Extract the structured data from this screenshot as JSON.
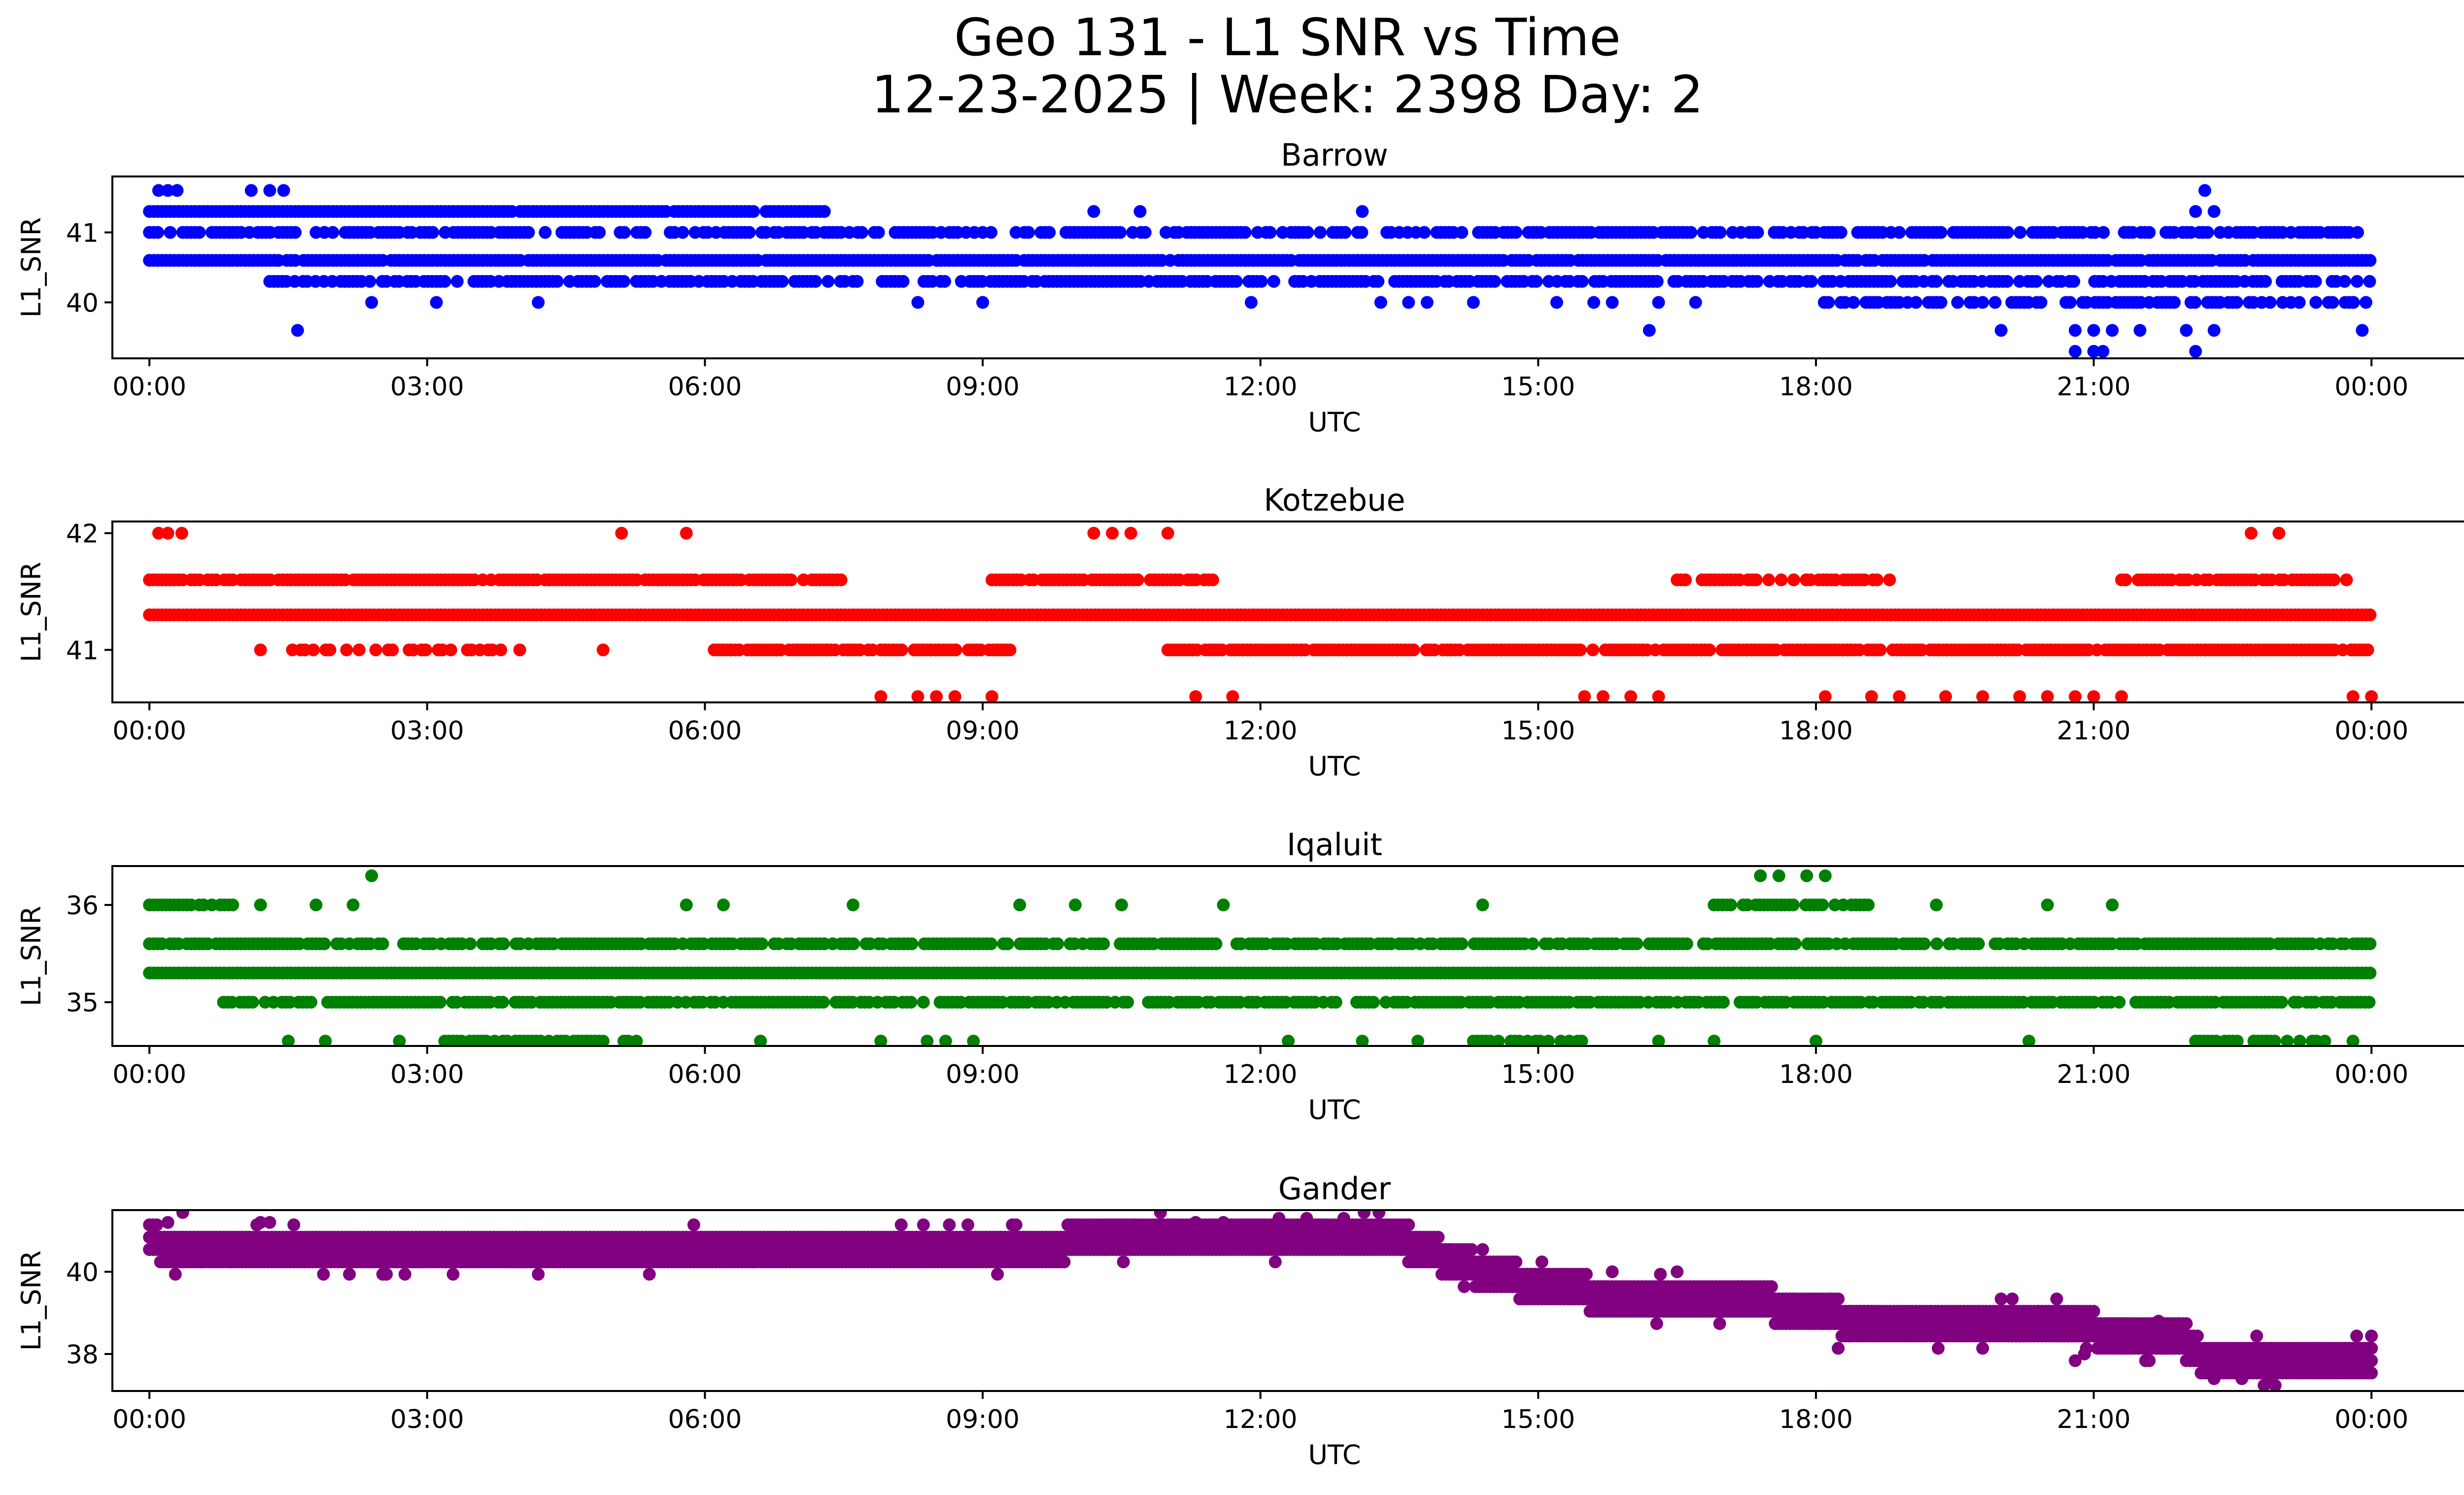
{
  "title": "Geo 131 - L1 SNR vs Time",
  "subtitle": "12-23-2025 | Week: 2398 Day: 2",
  "chart_data": [
    {
      "type": "scatter",
      "title": "Barrow",
      "xlabel": "UTC",
      "ylabel": "L1_SNR",
      "color": "#0000ff",
      "xlim": [
        -0.4,
        26.0
      ],
      "ylim": [
        39.2,
        41.8
      ],
      "xticks": [
        "00:00",
        "03:00",
        "06:00",
        "09:00",
        "12:00",
        "15:00",
        "18:00",
        "21:00",
        "00:00"
      ],
      "xtick_values": [
        0,
        3,
        6,
        9,
        12,
        15,
        18,
        21,
        24
      ],
      "yticks": [
        40,
        41
      ],
      "bands": [
        {
          "y": 41.3,
          "from": 0.0,
          "to": 7.3,
          "density": 0.95
        },
        {
          "y": 41.0,
          "from": 0.0,
          "to": 24.0,
          "density": 0.7
        },
        {
          "y": 40.6,
          "from": 0.0,
          "to": 24.0,
          "density": 0.95
        },
        {
          "y": 40.3,
          "from": 1.3,
          "to": 24.0,
          "density": 0.75
        },
        {
          "y": 40.0,
          "from": 18.0,
          "to": 24.0,
          "density": 0.6
        }
      ],
      "outliers": [
        {
          "x": 0.1,
          "y": 41.6
        },
        {
          "x": 0.2,
          "y": 41.6
        },
        {
          "x": 0.3,
          "y": 41.6
        },
        {
          "x": 1.1,
          "y": 41.6
        },
        {
          "x": 1.3,
          "y": 41.6
        },
        {
          "x": 1.45,
          "y": 41.6
        },
        {
          "x": 22.2,
          "y": 41.6
        },
        {
          "x": 1.6,
          "y": 39.6
        },
        {
          "x": 2.4,
          "y": 40.0
        },
        {
          "x": 3.1,
          "y": 40.0
        },
        {
          "x": 4.2,
          "y": 40.0
        },
        {
          "x": 8.3,
          "y": 40.0
        },
        {
          "x": 9.0,
          "y": 40.0
        },
        {
          "x": 11.9,
          "y": 40.0
        },
        {
          "x": 13.3,
          "y": 40.0
        },
        {
          "x": 13.6,
          "y": 40.0
        },
        {
          "x": 13.8,
          "y": 40.0
        },
        {
          "x": 14.3,
          "y": 40.0
        },
        {
          "x": 15.2,
          "y": 40.0
        },
        {
          "x": 15.6,
          "y": 40.0
        },
        {
          "x": 15.8,
          "y": 40.0
        },
        {
          "x": 16.3,
          "y": 40.0
        },
        {
          "x": 16.7,
          "y": 40.0
        },
        {
          "x": 16.2,
          "y": 39.6
        },
        {
          "x": 20.0,
          "y": 39.6
        },
        {
          "x": 20.8,
          "y": 39.6
        },
        {
          "x": 21.0,
          "y": 39.6
        },
        {
          "x": 21.2,
          "y": 39.6
        },
        {
          "x": 21.5,
          "y": 39.6
        },
        {
          "x": 22.0,
          "y": 39.6
        },
        {
          "x": 22.3,
          "y": 39.6
        },
        {
          "x": 23.9,
          "y": 39.6
        },
        {
          "x": 20.8,
          "y": 39.3
        },
        {
          "x": 21.0,
          "y": 39.3
        },
        {
          "x": 21.1,
          "y": 39.3
        },
        {
          "x": 22.1,
          "y": 39.3
        },
        {
          "x": 10.2,
          "y": 41.3
        },
        {
          "x": 10.7,
          "y": 41.3
        },
        {
          "x": 13.1,
          "y": 41.3
        },
        {
          "x": 22.1,
          "y": 41.3
        },
        {
          "x": 22.3,
          "y": 41.3
        }
      ]
    },
    {
      "type": "scatter",
      "title": "Kotzebue",
      "xlabel": "UTC",
      "ylabel": "L1_SNR",
      "color": "#ff0000",
      "xlim": [
        -0.4,
        26.0
      ],
      "ylim": [
        40.55,
        42.1
      ],
      "xticks": [
        "00:00",
        "03:00",
        "06:00",
        "09:00",
        "12:00",
        "15:00",
        "18:00",
        "21:00",
        "00:00"
      ],
      "xtick_values": [
        0,
        3,
        6,
        9,
        12,
        15,
        18,
        21,
        24
      ],
      "yticks": [
        41,
        42
      ],
      "bands": [
        {
          "y": 41.6,
          "from": 0.0,
          "to": 7.5,
          "density": 0.9
        },
        {
          "y": 41.6,
          "from": 9.1,
          "to": 11.5,
          "density": 0.85
        },
        {
          "y": 41.6,
          "from": 16.5,
          "to": 18.8,
          "density": 0.7
        },
        {
          "y": 41.6,
          "from": 21.3,
          "to": 23.8,
          "density": 0.7
        },
        {
          "y": 41.3,
          "from": 0.0,
          "to": 24.0,
          "density": 1.0
        },
        {
          "y": 41.0,
          "from": 6.1,
          "to": 9.3,
          "density": 0.85
        },
        {
          "y": 41.0,
          "from": 11.0,
          "to": 24.0,
          "density": 0.9
        },
        {
          "y": 41.0,
          "from": 1.5,
          "to": 3.8,
          "density": 0.5
        }
      ],
      "outliers": [
        {
          "x": 0.1,
          "y": 42.0
        },
        {
          "x": 0.2,
          "y": 42.0
        },
        {
          "x": 0.35,
          "y": 42.0
        },
        {
          "x": 5.1,
          "y": 42.0
        },
        {
          "x": 5.8,
          "y": 42.0
        },
        {
          "x": 10.2,
          "y": 42.0
        },
        {
          "x": 10.4,
          "y": 42.0
        },
        {
          "x": 10.6,
          "y": 42.0
        },
        {
          "x": 11.0,
          "y": 42.0
        },
        {
          "x": 22.7,
          "y": 42.0
        },
        {
          "x": 23.0,
          "y": 42.0
        },
        {
          "x": 1.2,
          "y": 41.0
        },
        {
          "x": 4.0,
          "y": 41.0
        },
        {
          "x": 4.9,
          "y": 41.0
        },
        {
          "x": 7.9,
          "y": 40.6
        },
        {
          "x": 8.3,
          "y": 40.6
        },
        {
          "x": 8.5,
          "y": 40.6
        },
        {
          "x": 8.7,
          "y": 40.6
        },
        {
          "x": 9.1,
          "y": 40.6
        },
        {
          "x": 11.3,
          "y": 40.6
        },
        {
          "x": 11.7,
          "y": 40.6
        },
        {
          "x": 15.5,
          "y": 40.6
        },
        {
          "x": 15.7,
          "y": 40.6
        },
        {
          "x": 16.0,
          "y": 40.6
        },
        {
          "x": 16.3,
          "y": 40.6
        },
        {
          "x": 18.1,
          "y": 40.6
        },
        {
          "x": 18.6,
          "y": 40.6
        },
        {
          "x": 18.9,
          "y": 40.6
        },
        {
          "x": 19.4,
          "y": 40.6
        },
        {
          "x": 19.8,
          "y": 40.6
        },
        {
          "x": 20.2,
          "y": 40.6
        },
        {
          "x": 20.5,
          "y": 40.6
        },
        {
          "x": 20.8,
          "y": 40.6
        },
        {
          "x": 21.0,
          "y": 40.6
        },
        {
          "x": 21.3,
          "y": 40.6
        },
        {
          "x": 23.8,
          "y": 40.6
        },
        {
          "x": 24.0,
          "y": 40.6
        }
      ]
    },
    {
      "type": "scatter",
      "title": "Iqaluit",
      "xlabel": "UTC",
      "ylabel": "L1_SNR",
      "color": "#008000",
      "xlim": [
        -0.4,
        26.0
      ],
      "ylim": [
        34.55,
        36.4
      ],
      "xticks": [
        "00:00",
        "03:00",
        "06:00",
        "09:00",
        "12:00",
        "15:00",
        "18:00",
        "21:00",
        "00:00"
      ],
      "xtick_values": [
        0,
        3,
        6,
        9,
        12,
        15,
        18,
        21,
        24
      ],
      "yticks": [
        35,
        36
      ],
      "bands": [
        {
          "y": 36.0,
          "from": 0.0,
          "to": 0.9,
          "density": 0.8
        },
        {
          "y": 36.0,
          "from": 16.9,
          "to": 18.6,
          "density": 0.7
        },
        {
          "y": 35.6,
          "from": 0.0,
          "to": 24.0,
          "density": 0.8
        },
        {
          "y": 35.3,
          "from": 0.0,
          "to": 24.0,
          "density": 1.0
        },
        {
          "y": 35.0,
          "from": 0.8,
          "to": 24.0,
          "density": 0.8
        },
        {
          "y": 34.6,
          "from": 3.1,
          "to": 5.3,
          "density": 0.6
        },
        {
          "y": 34.6,
          "from": 14.3,
          "to": 15.5,
          "density": 0.5
        },
        {
          "y": 34.6,
          "from": 22.1,
          "to": 23.5,
          "density": 0.6
        }
      ],
      "outliers": [
        {
          "x": 2.4,
          "y": 36.3
        },
        {
          "x": 17.4,
          "y": 36.3
        },
        {
          "x": 17.6,
          "y": 36.3
        },
        {
          "x": 17.9,
          "y": 36.3
        },
        {
          "x": 18.1,
          "y": 36.3
        },
        {
          "x": 1.2,
          "y": 36.0
        },
        {
          "x": 1.8,
          "y": 36.0
        },
        {
          "x": 2.2,
          "y": 36.0
        },
        {
          "x": 5.8,
          "y": 36.0
        },
        {
          "x": 6.2,
          "y": 36.0
        },
        {
          "x": 7.6,
          "y": 36.0
        },
        {
          "x": 9.4,
          "y": 36.0
        },
        {
          "x": 10.0,
          "y": 36.0
        },
        {
          "x": 10.5,
          "y": 36.0
        },
        {
          "x": 11.6,
          "y": 36.0
        },
        {
          "x": 14.4,
          "y": 36.0
        },
        {
          "x": 19.3,
          "y": 36.0
        },
        {
          "x": 20.5,
          "y": 36.0
        },
        {
          "x": 21.2,
          "y": 36.0
        },
        {
          "x": 1.5,
          "y": 34.6
        },
        {
          "x": 1.9,
          "y": 34.6
        },
        {
          "x": 2.7,
          "y": 34.6
        },
        {
          "x": 6.6,
          "y": 34.6
        },
        {
          "x": 7.9,
          "y": 34.6
        },
        {
          "x": 8.4,
          "y": 34.6
        },
        {
          "x": 8.6,
          "y": 34.6
        },
        {
          "x": 8.9,
          "y": 34.6
        },
        {
          "x": 12.3,
          "y": 34.6
        },
        {
          "x": 13.1,
          "y": 34.6
        },
        {
          "x": 13.7,
          "y": 34.6
        },
        {
          "x": 16.3,
          "y": 34.6
        },
        {
          "x": 16.9,
          "y": 34.6
        },
        {
          "x": 18.0,
          "y": 34.6
        },
        {
          "x": 20.3,
          "y": 34.6
        },
        {
          "x": 23.8,
          "y": 34.6
        }
      ]
    },
    {
      "type": "scatter",
      "title": "Gander",
      "xlabel": "UTC",
      "ylabel": "L1_SNR",
      "color": "#800080",
      "xlim": [
        -0.4,
        26.0
      ],
      "ylim": [
        37.1,
        41.5
      ],
      "xticks": [
        "00:00",
        "03:00",
        "06:00",
        "09:00",
        "12:00",
        "15:00",
        "18:00",
        "21:00",
        "00:00"
      ],
      "xtick_values": [
        0,
        3,
        6,
        9,
        12,
        15,
        18,
        21,
        24
      ],
      "yticks": [
        38,
        40
      ],
      "trend": [
        {
          "x": 0.0,
          "y": 40.7
        },
        {
          "x": 3.0,
          "y": 40.4
        },
        {
          "x": 6.0,
          "y": 40.6
        },
        {
          "x": 9.0,
          "y": 40.6
        },
        {
          "x": 11.0,
          "y": 40.8
        },
        {
          "x": 13.5,
          "y": 40.8
        },
        {
          "x": 14.5,
          "y": 39.9
        },
        {
          "x": 16.0,
          "y": 39.3
        },
        {
          "x": 17.5,
          "y": 39.2
        },
        {
          "x": 18.5,
          "y": 38.8
        },
        {
          "x": 20.0,
          "y": 38.7
        },
        {
          "x": 21.0,
          "y": 38.6
        },
        {
          "x": 22.0,
          "y": 38.3
        },
        {
          "x": 22.2,
          "y": 37.9
        },
        {
          "x": 24.0,
          "y": 37.9
        }
      ],
      "spread": 0.6,
      "outliers": [
        {
          "x": 0.2,
          "y": 41.2
        },
        {
          "x": 1.2,
          "y": 41.2
        },
        {
          "x": 1.3,
          "y": 41.2
        },
        {
          "x": 11.3,
          "y": 41.2
        },
        {
          "x": 11.6,
          "y": 41.2
        },
        {
          "x": 12.2,
          "y": 41.3
        },
        {
          "x": 12.5,
          "y": 41.3
        },
        {
          "x": 12.9,
          "y": 41.3
        },
        {
          "x": 22.3,
          "y": 37.4
        },
        {
          "x": 22.6,
          "y": 37.4
        },
        {
          "x": 22.9,
          "y": 37.4
        },
        {
          "x": 15.8,
          "y": 40.0
        },
        {
          "x": 16.5,
          "y": 40.0
        },
        {
          "x": 17.3,
          "y": 39.6
        },
        {
          "x": 20.9,
          "y": 38.0
        },
        {
          "x": 21.7,
          "y": 38.8
        }
      ]
    }
  ]
}
